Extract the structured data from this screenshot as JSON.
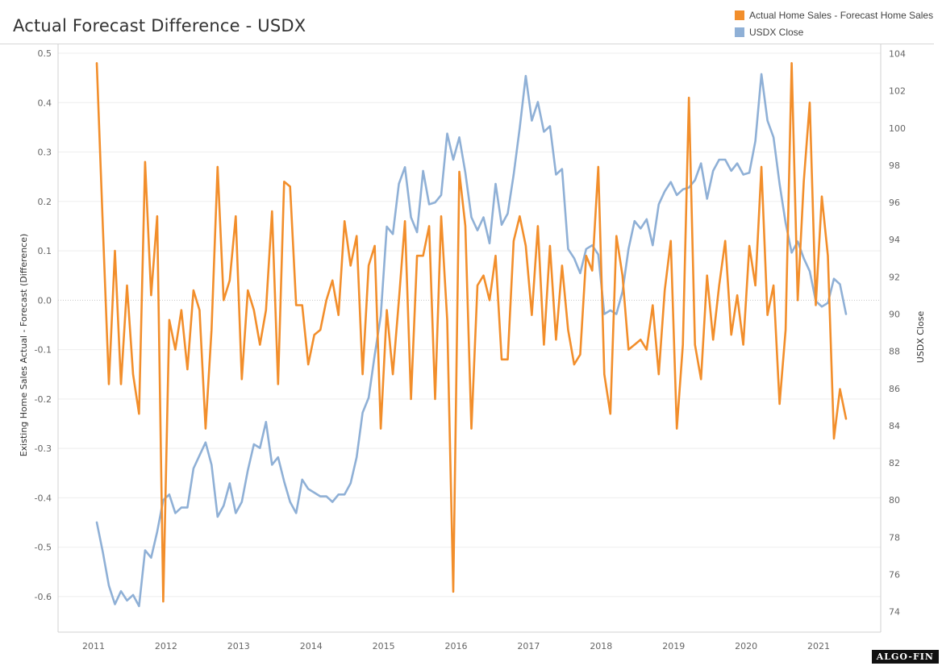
{
  "title": "Actual Forecast Difference - USDX",
  "legend": [
    {
      "label": "Actual Home Sales - Forecast Home Sales",
      "color": "#f28e2b"
    },
    {
      "label": "USDX Close",
      "color": "#8fb0d6"
    }
  ],
  "logo_text": "ALGO-FIN",
  "chart_data": {
    "type": "line",
    "title": "Actual Forecast Difference - USDX",
    "xlabel": "",
    "x_ticks": [
      "2011",
      "2012",
      "2013",
      "2014",
      "2015",
      "2016",
      "2017",
      "2018",
      "2019",
      "2020",
      "2021"
    ],
    "y_left": {
      "label": "Existing Home Sales Actual - Forecast (Difference)",
      "ticks": [
        "0.5",
        "0.4",
        "0.3",
        "0.2",
        "0.1",
        "0.0",
        "-0.1",
        "-0.2",
        "-0.3",
        "-0.4",
        "-0.5",
        "-0.6"
      ],
      "tick_values": [
        0.5,
        0.4,
        0.3,
        0.2,
        0.1,
        0.0,
        -0.1,
        -0.2,
        -0.3,
        -0.4,
        -0.5,
        -0.6
      ],
      "range": [
        -0.672,
        0.518
      ]
    },
    "y_right": {
      "label": "USDX Close",
      "ticks": [
        "104",
        "102",
        "100",
        "98",
        "96",
        "94",
        "92",
        "90",
        "88",
        "86",
        "84",
        "82",
        "80",
        "78",
        "76",
        "74"
      ],
      "tick_values": [
        104,
        102,
        100,
        98,
        96,
        94,
        92,
        90,
        88,
        86,
        84,
        82,
        80,
        78,
        76,
        74
      ],
      "range": [
        72.9,
        104.5
      ]
    },
    "grid": true,
    "zero_line": true,
    "legend_position": "top-right",
    "series": [
      {
        "name": "Actual Home Sales - Forecast Home Sales",
        "axis": "left",
        "color": "#f28e2b",
        "values": [
          0.48,
          0.15,
          -0.17,
          0.1,
          -0.17,
          0.03,
          -0.15,
          -0.23,
          0.28,
          0.01,
          0.17,
          -0.61,
          -0.04,
          -0.1,
          -0.02,
          -0.14,
          0.02,
          -0.02,
          -0.26,
          -0.06,
          0.27,
          0.0,
          0.04,
          0.17,
          -0.16,
          0.02,
          -0.02,
          -0.09,
          -0.02,
          0.18,
          -0.17,
          0.24,
          0.23,
          -0.01,
          -0.01,
          -0.13,
          -0.07,
          -0.06,
          0.0,
          0.04,
          -0.03,
          0.16,
          0.07,
          0.13,
          -0.15,
          0.07,
          0.11,
          -0.26,
          -0.02,
          -0.15,
          0.0,
          0.16,
          -0.2,
          0.09,
          0.09,
          0.15,
          -0.2,
          0.17,
          -0.04,
          -0.59,
          0.26,
          0.15,
          -0.26,
          0.03,
          0.05,
          0.0,
          0.09,
          -0.12,
          -0.12,
          0.12,
          0.17,
          0.11,
          -0.03,
          0.15,
          -0.09,
          0.11,
          -0.08,
          0.07,
          -0.06,
          -0.13,
          -0.11,
          0.09,
          0.06,
          0.27,
          -0.15,
          -0.23,
          0.13,
          0.05,
          -0.1,
          -0.09,
          -0.08,
          -0.1,
          -0.01,
          -0.15,
          0.02,
          0.12,
          -0.26,
          -0.09,
          0.41,
          -0.09,
          -0.16,
          0.05,
          -0.08,
          0.03,
          0.12,
          -0.07,
          0.01,
          -0.09,
          0.11,
          0.03,
          0.27,
          -0.03,
          0.03,
          -0.21,
          -0.06,
          0.48,
          0.0,
          0.24,
          0.4,
          -0.01,
          0.21,
          0.09,
          -0.28,
          -0.18,
          -0.24
        ]
      },
      {
        "name": "USDX Close",
        "axis": "right",
        "color": "#8fb0d6",
        "values": [
          78.8,
          77.2,
          75.4,
          74.4,
          75.1,
          74.6,
          74.9,
          74.3,
          77.3,
          76.9,
          78.3,
          80.0,
          80.3,
          79.3,
          79.6,
          79.6,
          81.7,
          82.4,
          83.1,
          81.9,
          79.1,
          79.7,
          80.9,
          79.3,
          79.9,
          81.6,
          83.0,
          82.8,
          84.2,
          81.9,
          82.3,
          81.0,
          79.9,
          79.3,
          81.1,
          80.6,
          80.4,
          80.2,
          80.2,
          79.9,
          80.3,
          80.3,
          80.9,
          82.3,
          84.7,
          85.5,
          87.8,
          89.9,
          94.7,
          94.3,
          97.0,
          97.9,
          95.2,
          94.4,
          97.7,
          95.9,
          96.0,
          96.4,
          99.7,
          98.3,
          99.5,
          97.6,
          95.2,
          94.5,
          95.2,
          93.8,
          97.0,
          94.8,
          95.4,
          97.5,
          100.0,
          102.8,
          100.4,
          101.4,
          99.8,
          100.1,
          97.5,
          97.8,
          93.5,
          93.0,
          92.2,
          93.5,
          93.7,
          93.2,
          90.0,
          90.2,
          90.0,
          91.2,
          93.5,
          95.0,
          94.6,
          95.1,
          93.7,
          95.9,
          96.6,
          97.1,
          96.4,
          96.7,
          96.8,
          97.2,
          98.1,
          96.2,
          97.7,
          98.3,
          98.3,
          97.7,
          98.1,
          97.5,
          97.6,
          99.3,
          102.9,
          100.4,
          99.5,
          97.0,
          94.9,
          93.3,
          93.9,
          93.0,
          92.3,
          90.7,
          90.4,
          90.6,
          91.9,
          91.6,
          90.0
        ]
      }
    ]
  }
}
